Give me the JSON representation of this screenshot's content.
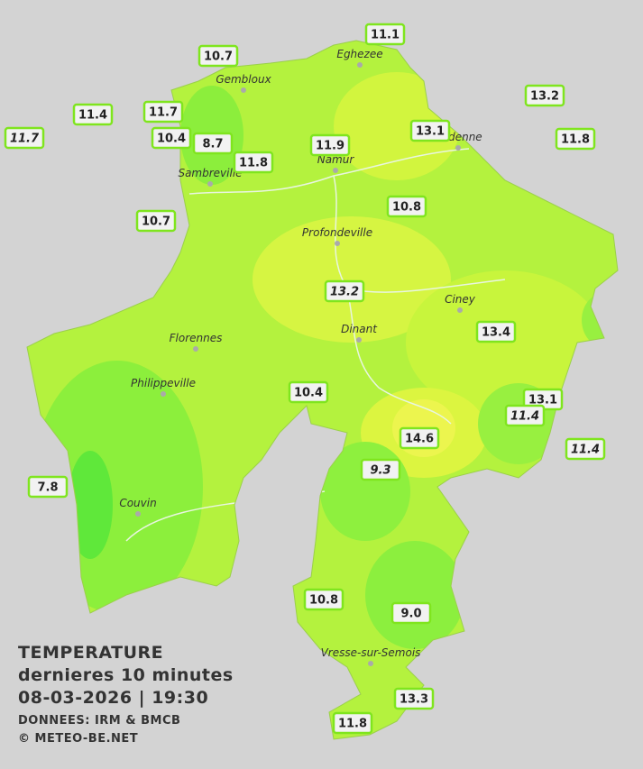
{
  "title": {
    "line1": "TEMPERATURE",
    "line2": "dernieres 10 minutes",
    "line3": "08-03-2026  |  19:30",
    "source": "DONNEES: IRM & BMCB",
    "copyright": "© METEO-BE.NET"
  },
  "stations": [
    {
      "value": "11.1"
    },
    {
      "value": "10.7"
    },
    {
      "value": "11.4"
    },
    {
      "value": "11.7"
    },
    {
      "value": "13.2"
    },
    {
      "value": "11.7",
      "italic": true
    },
    {
      "value": "10.4"
    },
    {
      "value": "8.7"
    },
    {
      "value": "13.1"
    },
    {
      "value": "11.8"
    },
    {
      "value": "11.9"
    },
    {
      "value": "11.8"
    },
    {
      "value": "10.8"
    },
    {
      "value": "10.7"
    },
    {
      "value": "13.2",
      "italic": true
    },
    {
      "value": "13.4"
    },
    {
      "value": "10.4"
    },
    {
      "value": "13.1"
    },
    {
      "value": "11.4",
      "italic": true
    },
    {
      "value": "14.6"
    },
    {
      "value": "11.4",
      "italic": true
    },
    {
      "value": "9.3",
      "italic": true
    },
    {
      "value": "7.8"
    },
    {
      "value": "10.8"
    },
    {
      "value": "9.0"
    },
    {
      "value": "13.3"
    },
    {
      "value": "11.8"
    }
  ],
  "towns": [
    "Eghezee",
    "Gembloux",
    "Andenne",
    "Namur",
    "Sambreville",
    "Profondeville",
    "Ciney",
    "Dinant",
    "Florennes",
    "Philippeville",
    "Couvin",
    "Vresse-sur-Semois"
  ]
}
